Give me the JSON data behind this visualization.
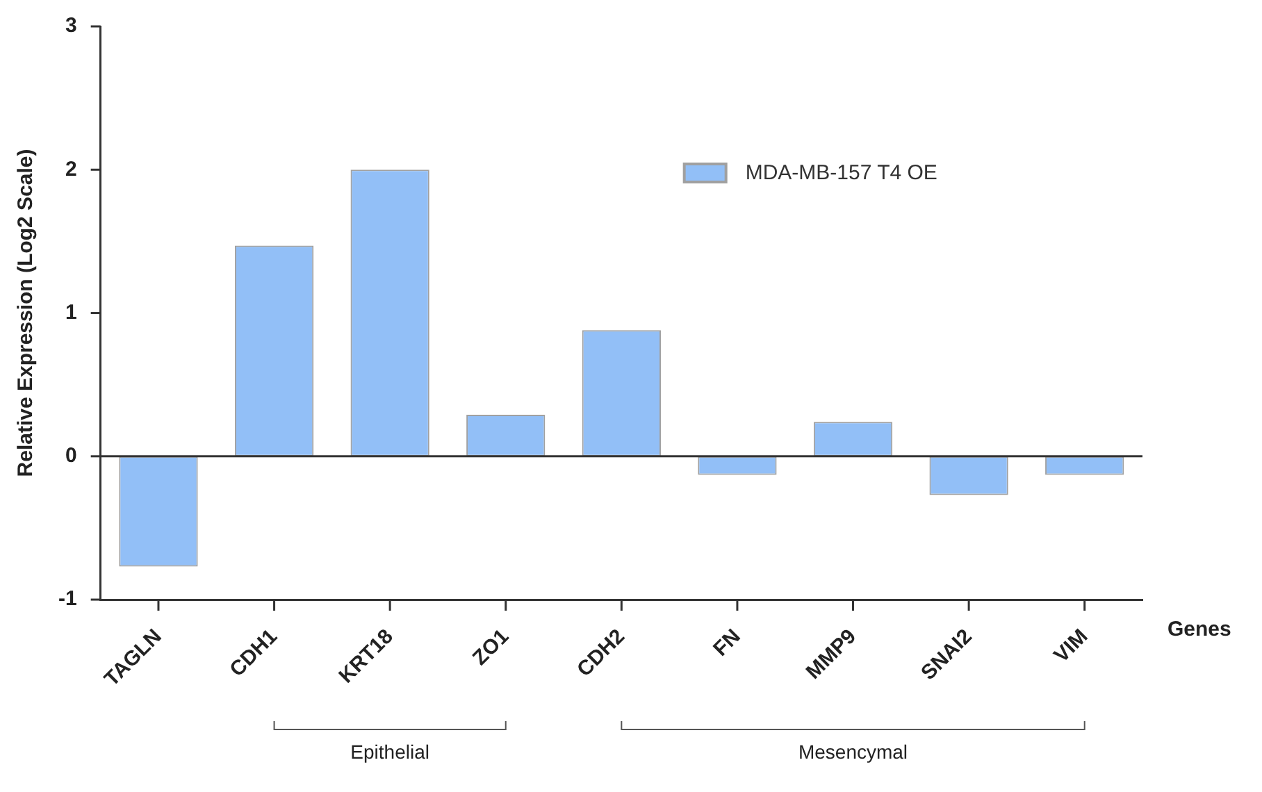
{
  "chart_data": {
    "type": "bar",
    "xlabel": "Genes",
    "ylabel": "Relative Expression (Log2 Scale)",
    "categories": [
      "TAGLN",
      "CDH1",
      "KRT18",
      "ZO1",
      "CDH2",
      "FN",
      "MMP9",
      "SNAI2",
      "VIM"
    ],
    "series": [
      {
        "name": "MDA-MB-157 T4 OE",
        "color": "#92bff7",
        "values": [
          -0.77,
          1.47,
          2.0,
          0.29,
          0.88,
          -0.13,
          0.24,
          -0.27,
          -0.13
        ]
      }
    ],
    "ref_lines": [
      {
        "axis": "y",
        "value": 0,
        "color": "#333333"
      }
    ],
    "ylim": [
      -1,
      3
    ],
    "yticks": [
      -1,
      0,
      1,
      2,
      3
    ],
    "grid": false,
    "legend": "top right",
    "annotations": [
      "Epithelial",
      "Mesencymal"
    ]
  }
}
